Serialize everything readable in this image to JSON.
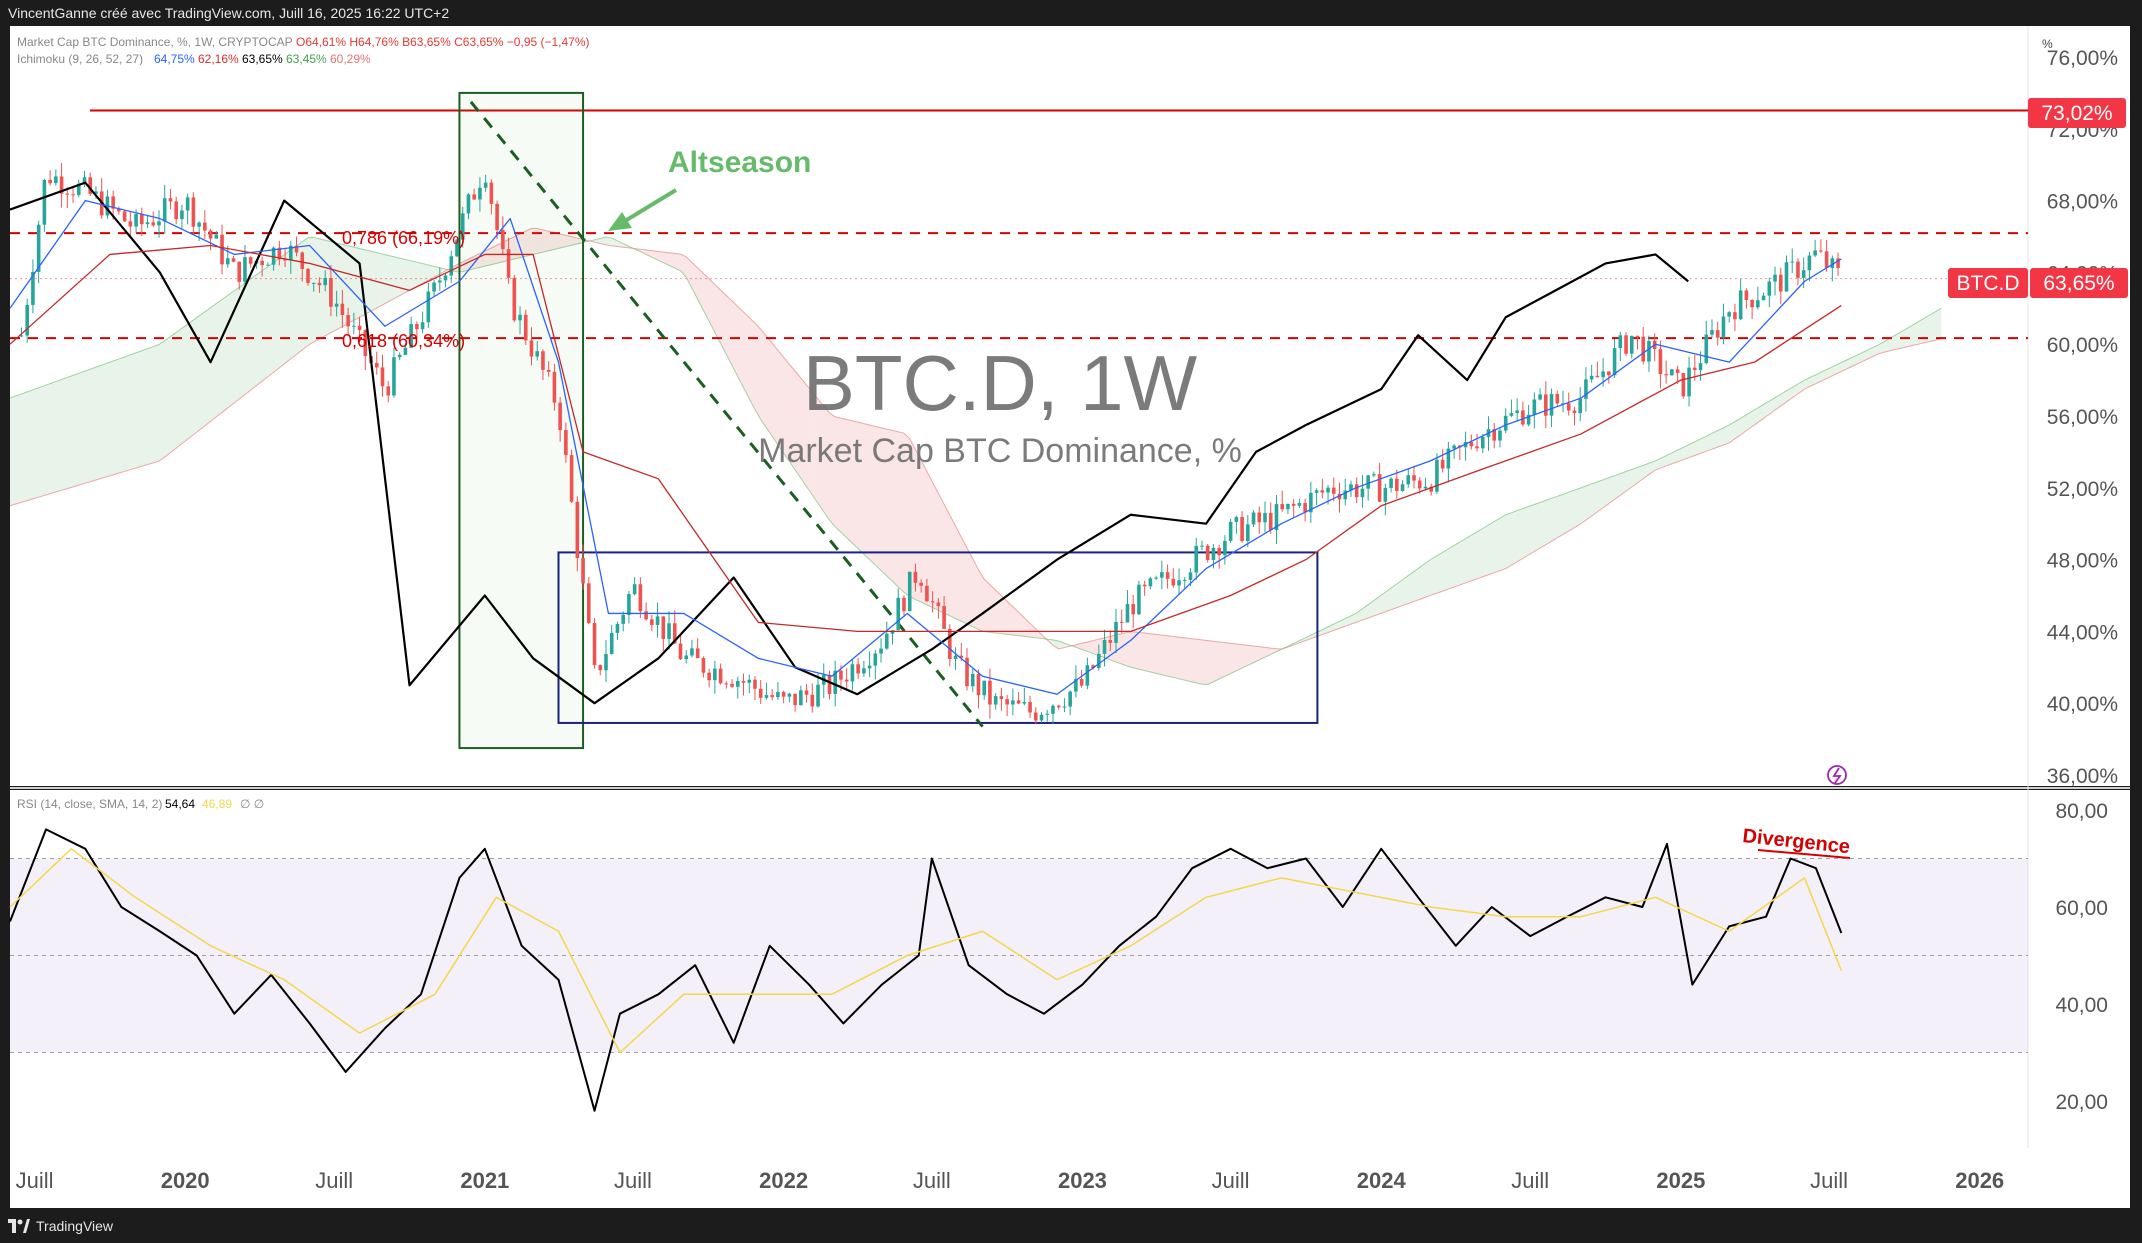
{
  "header": {
    "attribution": "VincentGanne créé avec TradingView.com, Juill 16, 2025 16:22 UTC+2"
  },
  "legend": {
    "main": {
      "label": "Market Cap BTC Dominance, %, 1W, CRYPTOCAP",
      "ohlc": "O64,61% H64,76% B63,65% C63,65% −0,95 (−1,47%)"
    },
    "ichimoku": {
      "label": "Ichimoku (9, 26, 52, 27)",
      "values": [
        {
          "text": "64,75%",
          "color": "#2962ff"
        },
        {
          "text": "62,16%",
          "color": "#d32f2f"
        },
        {
          "text": "63,65%",
          "color": "#000000"
        },
        {
          "text": "63,45%",
          "color": "#43a047"
        },
        {
          "text": "60,29%",
          "color": "#e57373"
        }
      ]
    },
    "rsi": {
      "label": "RSI (14, close, SMA, 14, 2)",
      "value": "54,64",
      "sma": "46,89",
      "extra": "∅ ∅"
    }
  },
  "watermark": {
    "symbol": "BTC.D, 1W",
    "name": "Market Cap BTC Dominance, %"
  },
  "price_axis": {
    "unit": "%",
    "ticks": [
      "76,00%",
      "72,00%",
      "68,00%",
      "64,00%",
      "60,00%",
      "56,00%",
      "52,00%",
      "48,00%",
      "44,00%",
      "40,00%",
      "36,00%"
    ],
    "tick_values": [
      76,
      72,
      68,
      64,
      60,
      56,
      52,
      48,
      44,
      40,
      36
    ],
    "labels": {
      "level_high": "73,02%",
      "symbol": "BTC.D",
      "last": "63,65%"
    }
  },
  "rsi_axis": {
    "ticks": [
      "80,00",
      "60,00",
      "40,00",
      "20,00"
    ],
    "tick_values": [
      80,
      60,
      40,
      20
    ]
  },
  "time_axis": {
    "ticks": [
      {
        "label": "Juill",
        "date": "2019-07-01",
        "bold": false
      },
      {
        "label": "2020",
        "date": "2020-01-01",
        "bold": true
      },
      {
        "label": "Juill",
        "date": "2020-07-01",
        "bold": false
      },
      {
        "label": "2021",
        "date": "2021-01-01",
        "bold": true
      },
      {
        "label": "Juill",
        "date": "2021-07-01",
        "bold": false
      },
      {
        "label": "2022",
        "date": "2022-01-01",
        "bold": true
      },
      {
        "label": "Juill",
        "date": "2022-07-01",
        "bold": false
      },
      {
        "label": "2023",
        "date": "2023-01-01",
        "bold": true
      },
      {
        "label": "Juill",
        "date": "2023-07-01",
        "bold": false
      },
      {
        "label": "2024",
        "date": "2024-01-01",
        "bold": true
      },
      {
        "label": "Juill",
        "date": "2024-07-01",
        "bold": false
      },
      {
        "label": "2025",
        "date": "2025-01-01",
        "bold": true
      },
      {
        "label": "Juill",
        "date": "2025-07-01",
        "bold": false
      },
      {
        "label": "2026",
        "date": "2026-01-01",
        "bold": true
      }
    ]
  },
  "annotations": {
    "altseason": "Altseason",
    "fib_786": "0,786 (66,19%)",
    "fib_618": "0,618 (60,34%)",
    "divergence": "Divergence"
  },
  "colors": {
    "bull": "#26a69a",
    "bear": "#ef5350",
    "tenkan": "#2962ff",
    "kijun": "#c62828",
    "chikou": "#000000",
    "span_a": "#66bb6a",
    "span_b": "#e57373",
    "cloud_bull": "rgba(67,160,71,0.12)",
    "cloud_bear": "rgba(229,115,115,0.18)",
    "rsi_line": "#000000",
    "rsi_sma": "#f5d74a",
    "rsi_band": "rgba(126,87,194,0.09)",
    "box_blue": "#1a237e",
    "box_green": "#1b5e20",
    "dashed_red": "#d50000",
    "altseason_text": "#66bb6a",
    "divergence": "#d50000"
  },
  "footer": {
    "brand": "TradingView"
  },
  "chart_data": [
    {
      "type": "line",
      "role": "price",
      "x_unit": "date",
      "y_unit": "% dominance",
      "ylim": [
        36,
        76
      ],
      "xlim": [
        "2019-06-01",
        "2026-03-01"
      ],
      "series": [
        {
          "name": "BTC.D",
          "x": [
            "2019-06-15",
            "2019-07-15",
            "2019-09-01",
            "2019-11-01",
            "2020-01-01",
            "2020-03-01",
            "2020-05-01",
            "2020-07-01",
            "2020-09-01",
            "2020-11-01",
            "2021-01-01",
            "2021-02-01",
            "2021-04-01",
            "2021-05-15",
            "2021-07-01",
            "2021-09-01",
            "2021-11-01",
            "2022-01-01",
            "2022-03-01",
            "2022-05-01",
            "2022-06-15",
            "2022-08-01",
            "2022-09-15",
            "2022-11-01",
            "2023-01-01",
            "2023-03-01",
            "2023-05-01",
            "2023-07-01",
            "2023-09-01",
            "2023-11-01",
            "2024-01-01",
            "2024-03-01",
            "2024-05-01",
            "2024-07-01",
            "2024-09-01",
            "2024-11-01",
            "2025-01-01",
            "2025-03-01",
            "2025-05-01",
            "2025-06-15",
            "2025-07-16"
          ],
          "y": [
            60.5,
            69.5,
            68.5,
            66.5,
            68.0,
            64.0,
            65.5,
            62.5,
            57.5,
            63.0,
            70.0,
            62.5,
            56.5,
            41.5,
            46.5,
            42.5,
            41.5,
            40.0,
            41.0,
            43.5,
            47.5,
            42.0,
            40.0,
            39.5,
            41.0,
            45.5,
            47.5,
            49.5,
            50.5,
            52.0,
            52.0,
            52.5,
            55.0,
            56.5,
            57.0,
            60.5,
            57.5,
            62.0,
            63.5,
            65.0,
            63.65
          ]
        },
        {
          "name": "Chikou",
          "x": [
            "2019-06-01",
            "2019-09-01",
            "2019-12-01",
            "2020-02-01",
            "2020-05-01",
            "2020-08-01",
            "2020-10-01",
            "2021-01-01",
            "2021-03-01",
            "2021-05-15",
            "2021-08-01",
            "2021-11-01",
            "2022-01-15",
            "2022-04-01",
            "2022-07-01",
            "2022-09-01",
            "2022-12-01",
            "2023-03-01",
            "2023-06-01",
            "2023-08-01",
            "2023-10-01",
            "2024-01-01",
            "2024-02-15",
            "2024-04-15",
            "2024-06-01",
            "2024-08-01",
            "2024-10-01",
            "2024-12-01",
            "2025-01-10"
          ],
          "y": [
            67.5,
            69.0,
            64.0,
            59.0,
            68.0,
            64.5,
            41.0,
            46.0,
            42.5,
            40.0,
            42.5,
            47.0,
            42.0,
            40.5,
            43.0,
            45.0,
            48.0,
            50.5,
            50.0,
            54.0,
            55.5,
            57.5,
            60.5,
            58.0,
            61.5,
            63.0,
            64.5,
            65.0,
            63.5
          ]
        },
        {
          "name": "Tenkan",
          "x": [
            "2019-06-01",
            "2019-09-01",
            "2019-12-01",
            "2020-03-01",
            "2020-06-01",
            "2020-09-01",
            "2020-12-01",
            "2021-02-01",
            "2021-04-01",
            "2021-06-01",
            "2021-09-01",
            "2021-12-01",
            "2022-03-01",
            "2022-06-01",
            "2022-09-01",
            "2022-12-01",
            "2023-03-01",
            "2023-06-01",
            "2023-09-01",
            "2023-12-01",
            "2024-03-01",
            "2024-06-01",
            "2024-09-01",
            "2024-12-01",
            "2025-03-01",
            "2025-06-01",
            "2025-07-16"
          ],
          "y": [
            62.0,
            68.0,
            67.0,
            65.0,
            65.5,
            61.0,
            63.5,
            67.0,
            59.0,
            45.0,
            45.0,
            42.5,
            41.5,
            45.0,
            41.5,
            40.5,
            43.5,
            47.5,
            50.0,
            52.0,
            53.5,
            55.5,
            57.0,
            60.0,
            59.0,
            63.5,
            64.75
          ]
        },
        {
          "name": "Kijun",
          "x": [
            "2019-06-01",
            "2019-10-01",
            "2020-02-01",
            "2020-06-01",
            "2020-10-01",
            "2021-01-01",
            "2021-03-01",
            "2021-05-01",
            "2021-08-01",
            "2021-12-01",
            "2022-04-01",
            "2022-08-01",
            "2022-12-01",
            "2023-03-01",
            "2023-07-01",
            "2023-10-01",
            "2024-01-01",
            "2024-05-01",
            "2024-09-01",
            "2025-01-01",
            "2025-04-01",
            "2025-07-16"
          ],
          "y": [
            60.0,
            65.0,
            65.5,
            64.5,
            63.0,
            65.0,
            65.0,
            54.0,
            52.5,
            44.5,
            44.0,
            44.0,
            44.0,
            44.0,
            46.0,
            48.0,
            51.0,
            53.0,
            55.0,
            58.0,
            59.0,
            62.16
          ]
        }
      ],
      "ichimoku_cloud": {
        "x": [
          "2019-06-01",
          "2019-12-01",
          "2020-06-01",
          "2020-12-01",
          "2021-03-01",
          "2021-06-01",
          "2021-09-01",
          "2021-12-01",
          "2022-03-01",
          "2022-06-01",
          "2022-09-01",
          "2022-12-01",
          "2023-03-01",
          "2023-06-01",
          "2023-09-01",
          "2023-12-01",
          "2024-03-01",
          "2024-06-01",
          "2024-09-01",
          "2024-12-01",
          "2025-03-01",
          "2025-06-01",
          "2025-09-01",
          "2025-11-15"
        ],
        "span_a": [
          57.0,
          60.0,
          66.0,
          64.0,
          65.0,
          66.0,
          64.0,
          56.0,
          50.0,
          46.0,
          44.0,
          43.5,
          42.0,
          41.0,
          43.0,
          45.0,
          48.0,
          50.5,
          52.0,
          53.5,
          55.5,
          58.0,
          60.0,
          62.0
        ],
        "span_b": [
          51.0,
          53.5,
          60.0,
          64.5,
          66.5,
          65.5,
          65.0,
          61.0,
          56.0,
          55.0,
          47.0,
          43.0,
          44.0,
          43.5,
          43.0,
          44.5,
          46.0,
          47.5,
          50.0,
          53.0,
          54.5,
          57.5,
          59.5,
          60.3
        ]
      },
      "candles_note": "Weekly candlesticks follow the BTC.D series above",
      "horizontal_levels": [
        {
          "value": 73.02,
          "style": "solid",
          "color": "#d50000"
        },
        {
          "value": 66.19,
          "style": "dashed",
          "color": "#d50000"
        },
        {
          "value": 60.34,
          "style": "dashed",
          "color": "#d50000"
        },
        {
          "value": 63.65,
          "style": "dotted",
          "color": "#ef5350"
        }
      ],
      "drawings": {
        "green_box": {
          "x": [
            "2020-12-01",
            "2021-05-01"
          ],
          "y": [
            37.5,
            74.0
          ]
        },
        "blue_box": {
          "x": [
            "2021-04-01",
            "2023-10-15"
          ],
          "y": [
            38.9,
            48.4
          ]
        },
        "dashed_trend": {
          "x": [
            "2020-12-15",
            "2022-09-01"
          ],
          "y": [
            73.5,
            38.7
          ]
        }
      }
    },
    {
      "type": "line",
      "role": "rsi",
      "ylim": [
        10,
        85
      ],
      "bands": {
        "upper": 70,
        "middle": 50,
        "lower": 30
      },
      "series": [
        {
          "name": "RSI",
          "x": [
            "2019-06-01",
            "2019-07-15",
            "2019-09-01",
            "2019-10-15",
            "2019-12-01",
            "2020-01-15",
            "2020-03-01",
            "2020-04-15",
            "2020-06-01",
            "2020-07-15",
            "2020-09-01",
            "2020-10-15",
            "2020-12-01",
            "2021-01-01",
            "2021-02-15",
            "2021-04-01",
            "2021-05-15",
            "2021-06-15",
            "2021-08-01",
            "2021-09-15",
            "2021-11-01",
            "2021-12-15",
            "2022-02-01",
            "2022-03-15",
            "2022-05-01",
            "2022-06-15",
            "2022-07-01",
            "2022-08-15",
            "2022-10-01",
            "2022-11-15",
            "2023-01-01",
            "2023-02-15",
            "2023-04-01",
            "2023-05-15",
            "2023-07-01",
            "2023-08-15",
            "2023-10-01",
            "2023-11-15",
            "2024-01-01",
            "2024-02-15",
            "2024-04-01",
            "2024-05-15",
            "2024-07-01",
            "2024-08-15",
            "2024-10-01",
            "2024-11-15",
            "2024-12-15",
            "2025-01-15",
            "2025-03-01",
            "2025-04-15",
            "2025-05-15",
            "2025-06-15",
            "2025-07-16"
          ],
          "y": [
            57,
            76,
            72,
            60,
            55,
            50,
            38,
            46,
            36,
            26,
            35,
            42,
            66,
            72,
            52,
            45,
            18,
            38,
            42,
            48,
            32,
            52,
            44,
            36,
            44,
            50,
            70,
            48,
            42,
            38,
            44,
            52,
            58,
            68,
            72,
            68,
            70,
            60,
            72,
            62,
            52,
            60,
            54,
            58,
            62,
            60,
            73,
            44,
            56,
            58,
            70,
            68,
            54.64
          ]
        },
        {
          "name": "RSI SMA",
          "x": [
            "2019-06-01",
            "2019-08-15",
            "2019-11-01",
            "2020-02-01",
            "2020-05-01",
            "2020-08-01",
            "2020-11-01",
            "2021-01-15",
            "2021-04-01",
            "2021-06-15",
            "2021-09-01",
            "2021-12-01",
            "2022-03-01",
            "2022-06-01",
            "2022-09-01",
            "2022-12-01",
            "2023-03-01",
            "2023-06-01",
            "2023-09-01",
            "2023-12-01",
            "2024-03-01",
            "2024-06-01",
            "2024-09-01",
            "2024-12-01",
            "2025-03-01",
            "2025-06-01",
            "2025-07-16"
          ],
          "y": [
            60,
            72,
            62,
            52,
            45,
            34,
            42,
            62,
            55,
            30,
            42,
            42,
            42,
            50,
            55,
            45,
            52,
            62,
            66,
            63,
            60,
            58,
            58,
            62,
            55,
            66,
            46.89
          ]
        }
      ]
    }
  ]
}
